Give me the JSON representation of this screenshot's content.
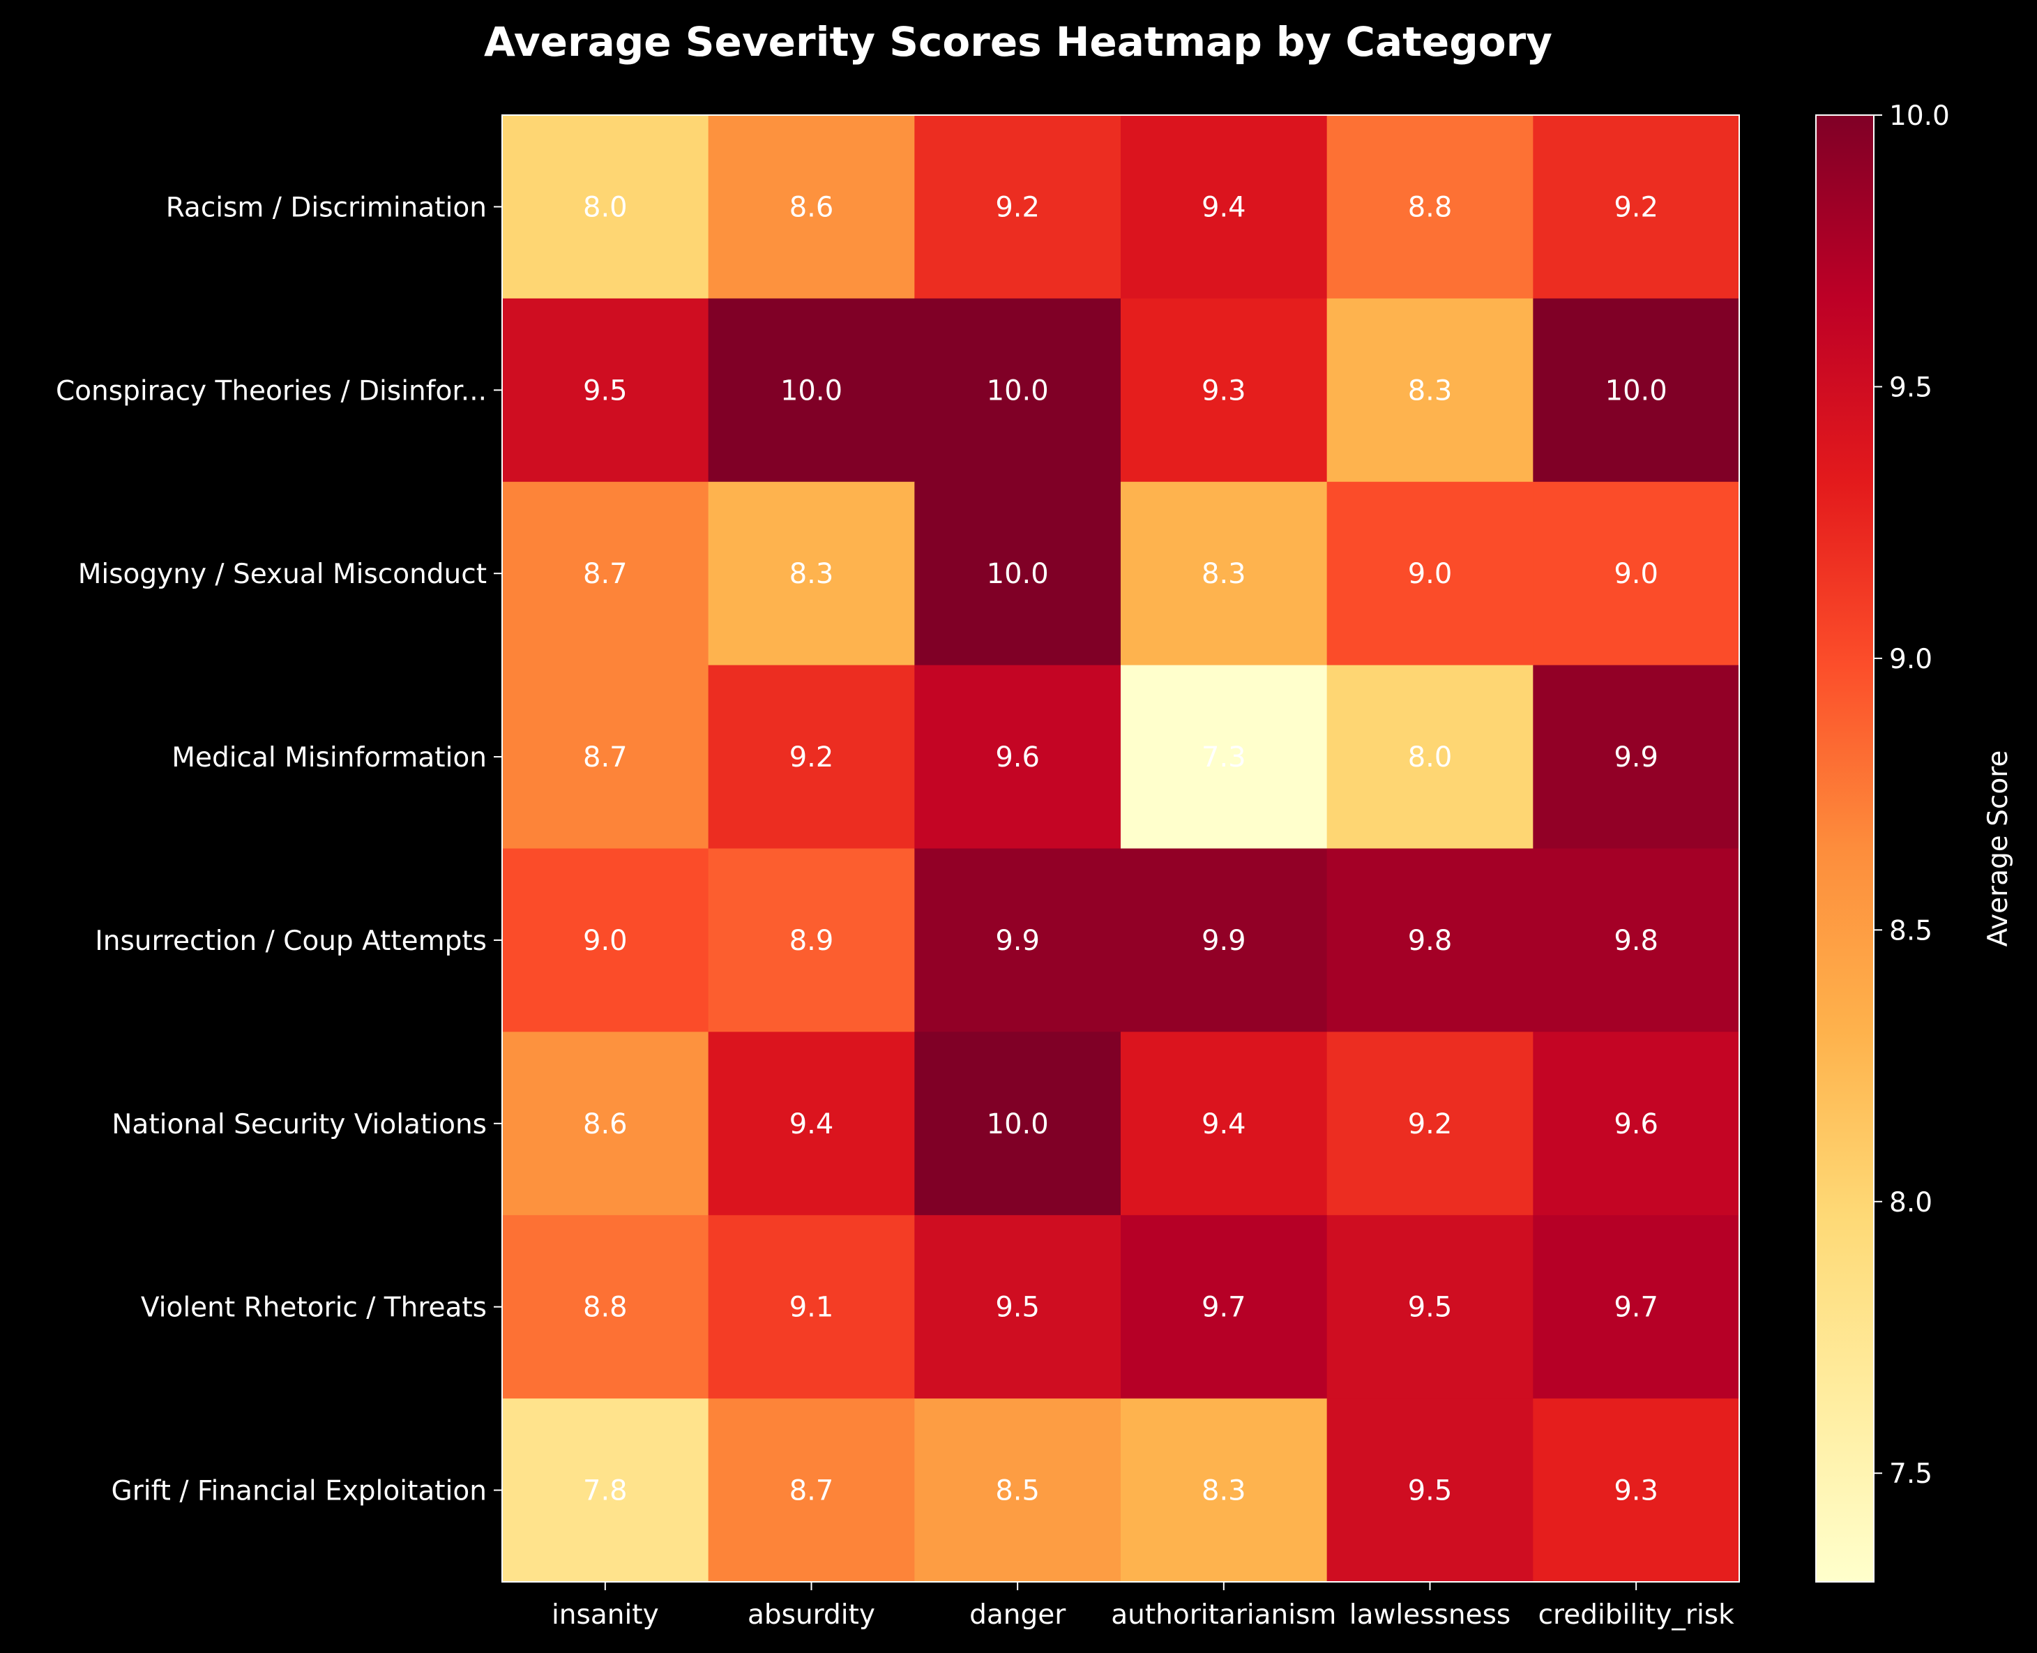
{
  "chart_data": {
    "type": "heatmap",
    "title": "Average Severity Scores Heatmap by Category",
    "rows": [
      "Racism / Discrimination",
      "Conspiracy Theories / Disinfor...",
      "Misogyny / Sexual Misconduct",
      "Medical Misinformation",
      "Insurrection / Coup Attempts",
      "National Security Violations",
      "Violent Rhetoric / Threats",
      "Grift / Financial Exploitation"
    ],
    "columns": [
      "insanity",
      "absurdity",
      "danger",
      "authoritarianism",
      "lawlessness",
      "credibility_risk"
    ],
    "values": [
      [
        8.0,
        8.6,
        9.2,
        9.4,
        8.8,
        9.2
      ],
      [
        9.5,
        10.0,
        10.0,
        9.3,
        8.3,
        10.0
      ],
      [
        8.7,
        8.3,
        10.0,
        8.3,
        9.0,
        9.0
      ],
      [
        8.7,
        9.2,
        9.6,
        7.3,
        8.0,
        9.9
      ],
      [
        9.0,
        8.9,
        9.9,
        9.9,
        9.8,
        9.8
      ],
      [
        8.6,
        9.4,
        10.0,
        9.4,
        9.2,
        9.6
      ],
      [
        8.8,
        9.1,
        9.5,
        9.7,
        9.5,
        9.7
      ],
      [
        7.8,
        8.7,
        8.5,
        8.3,
        9.5,
        9.3
      ]
    ],
    "cell_labels": [
      [
        "8.0",
        "8.6",
        "9.2",
        "9.4",
        "8.8",
        "9.2"
      ],
      [
        "9.5",
        "10.0",
        "10.0",
        "9.3",
        "8.3",
        "10.0"
      ],
      [
        "8.7",
        "8.3",
        "10.0",
        "8.3",
        "9.0",
        "9.0"
      ],
      [
        "8.7",
        "9.2",
        "9.6",
        "7.3",
        "8.0",
        "9.9"
      ],
      [
        "9.0",
        "8.9",
        "9.9",
        "9.9",
        "9.8",
        "9.8"
      ],
      [
        "8.6",
        "9.4",
        "10.0",
        "9.4",
        "9.2",
        "9.6"
      ],
      [
        "8.8",
        "9.1",
        "9.5",
        "9.7",
        "9.5",
        "9.7"
      ],
      [
        "7.8",
        "8.7",
        "8.5",
        "8.3",
        "9.5",
        "9.3"
      ]
    ],
    "colorbar": {
      "label": "Average Score",
      "vmin": 7.3,
      "vmax": 10.0,
      "ticks": [
        7.5,
        8.0,
        8.5,
        9.0,
        9.5,
        10.0
      ],
      "tick_labels": [
        "7.5",
        "8.0",
        "8.5",
        "9.0",
        "9.5",
        "10.0"
      ],
      "colormap": "YlOrRd",
      "colormap_stops": [
        "#ffffcc",
        "#ffeda0",
        "#fed976",
        "#feb24c",
        "#fd8d3c",
        "#fc4e2a",
        "#e31a1c",
        "#bd0026",
        "#800026"
      ]
    },
    "grid": false,
    "legend": "colorbar-right"
  },
  "colors": {
    "background": "#000000",
    "text": "#ffffff",
    "cell_text": "#ffffff"
  }
}
